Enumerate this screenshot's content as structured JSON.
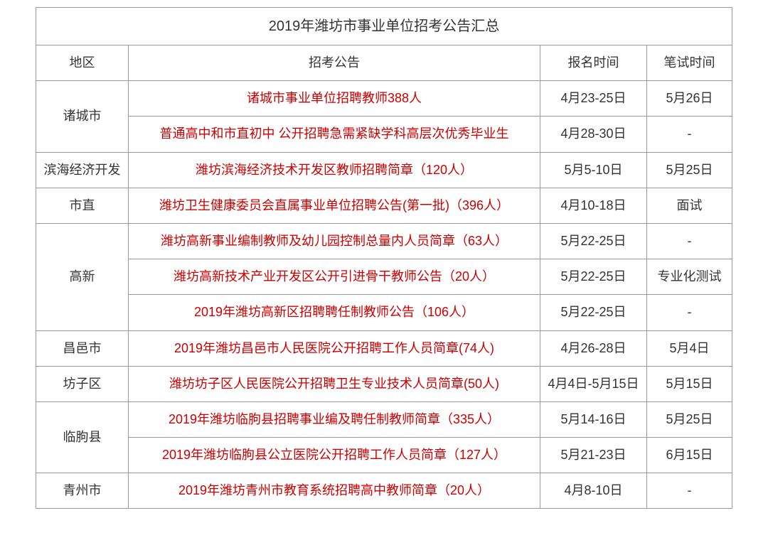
{
  "table": {
    "title": "2019年潍坊市事业单位招考公告汇总",
    "columns": [
      "地区",
      "招考公告",
      "报名时间",
      "笔试时间"
    ],
    "border_color": "#999999",
    "text_color": "#333333",
    "link_color": "#cc0000",
    "background_color": "#ffffff",
    "font_size_body": 18,
    "font_size_title": 20,
    "rowspans": {
      "zhucheng": 2,
      "gaoxin": 3,
      "linqu": 2
    },
    "regions": {
      "zhucheng": "诸城市",
      "binhai": "滨海经济开发",
      "shizhi": "市直",
      "gaoxin": "高新",
      "changyi": "昌邑市",
      "fangzi": "坊子区",
      "linqu": "临朐县",
      "qingzhou": "青州市"
    },
    "notices": {
      "zhucheng_1": "诸城市事业单位招聘教师388人",
      "zhucheng_2": "普通高中和市直初中 公开招聘急需紧缺学科高层次优秀毕业生",
      "binhai_1": "潍坊滨海经济技术开发区教师招聘简章（120人）",
      "shizhi_1": "潍坊卫生健康委员会直属事业单位招聘公告(第一批)（396人）",
      "gaoxin_1": "潍坊高新事业编制教师及幼儿园控制总量内人员简章（63人）",
      "gaoxin_2": "潍坊高新技术产业开发区公开引进骨干教师公告（20人）",
      "gaoxin_3": "2019年潍坊高新区招聘聘任制教师公告（106人）",
      "changyi_1": "2019年潍坊昌邑市人民医院公开招聘工作人员简章(74人)",
      "fangzi_1": "潍坊坊子区人民医院公开招聘卫生专业技术人员简章(50人)",
      "linqu_1": "2019年潍坊临朐县招聘事业编及聘任制教师简章（335人）",
      "linqu_2": "2019年潍坊临朐县公立医院公开招聘工作人员简章（127人）",
      "qingzhou_1": "2019年潍坊青州市教育系统招聘高中教师简章（20人）"
    },
    "reg_time": {
      "zhucheng_1": "4月23-25日",
      "zhucheng_2": "4月28-30日",
      "binhai_1": "5月5-10日",
      "shizhi_1": "4月10-18日",
      "gaoxin_1": "5月22-25日",
      "gaoxin_2": "5月22-25日",
      "gaoxin_3": "5月22-25日",
      "changyi_1": "4月26-28日",
      "fangzi_1": "4月4日-5月15日",
      "linqu_1": "5月14-16日",
      "linqu_2": "5月21-23日",
      "qingzhou_1": "4月8-10日"
    },
    "exam_time": {
      "zhucheng_1": "5月26日",
      "zhucheng_2": "-",
      "binhai_1": "5月25日",
      "shizhi_1": "面试",
      "gaoxin_1": "-",
      "gaoxin_2": "专业化测试",
      "gaoxin_3": "-",
      "changyi_1": "5月4日",
      "fangzi_1": "5月15日",
      "linqu_1": "5月25日",
      "linqu_2": "6月15日",
      "qingzhou_1": "-"
    }
  }
}
